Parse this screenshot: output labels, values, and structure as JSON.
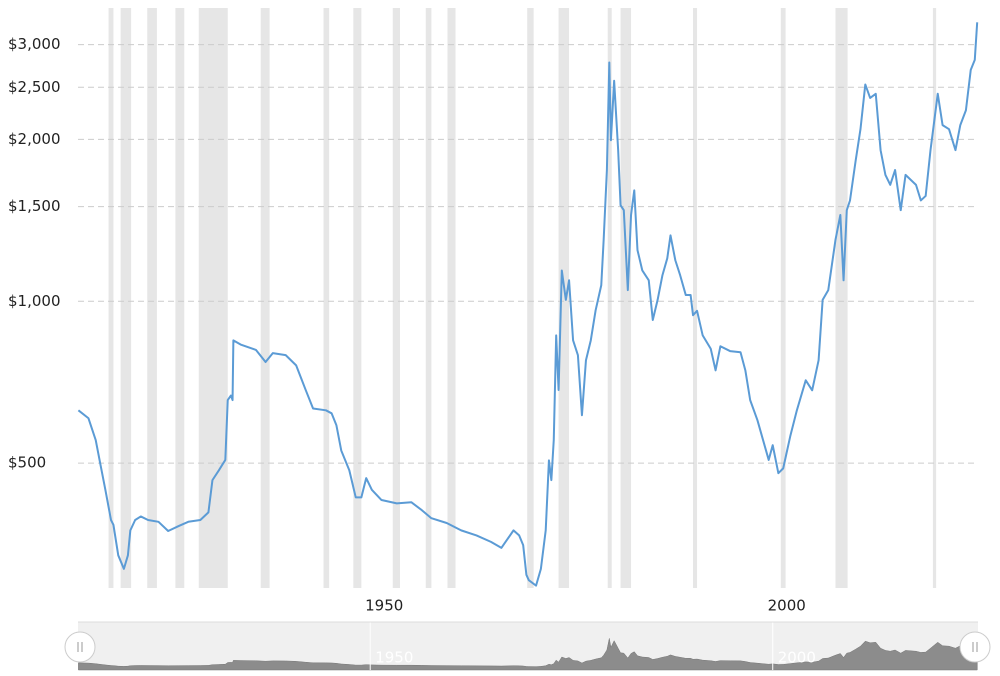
{
  "chart_data": {
    "type": "line",
    "yscale": "log",
    "grid": true,
    "xlim": [
      1913.7,
      2025.5
    ],
    "xticks": [
      1950,
      2000
    ],
    "ylim": [
      293,
      3510
    ],
    "yticks": [
      {
        "value": 500,
        "label": "$500"
      },
      {
        "value": 1000,
        "label": "$1,000"
      },
      {
        "value": 1500,
        "label": "$1,500"
      },
      {
        "value": 2000,
        "label": "$2,000"
      },
      {
        "value": 2500,
        "label": "$2,500"
      },
      {
        "value": 3000,
        "label": "$3,000"
      }
    ],
    "recession_color": "#e6e6e6",
    "recessions": [
      [
        1917.5,
        1918.1
      ],
      [
        1919.0,
        1920.3
      ],
      [
        1922.3,
        1923.5
      ],
      [
        1925.8,
        1926.9
      ],
      [
        1928.7,
        1932.3
      ],
      [
        1936.4,
        1937.5
      ],
      [
        1944.2,
        1944.9
      ],
      [
        1947.9,
        1948.9
      ],
      [
        1952.8,
        1953.7
      ],
      [
        1956.9,
        1957.6
      ],
      [
        1959.6,
        1960.6
      ],
      [
        1969.5,
        1970.3
      ],
      [
        1973.4,
        1974.7
      ],
      [
        1979.5,
        1980.0
      ],
      [
        1981.1,
        1982.4
      ],
      [
        1990.1,
        1990.6
      ],
      [
        2001.0,
        2001.6
      ],
      [
        2007.8,
        2009.3
      ],
      [
        2019.9,
        2020.3
      ]
    ],
    "x": [
      1913.75,
      1915.0,
      1915.9,
      1916.5,
      1917.1,
      1917.8,
      1918.1,
      1918.7,
      1919.4,
      1919.9,
      1920.2,
      1920.8,
      1921.5,
      1922.4,
      1923.7,
      1924.9,
      1926.2,
      1927.4,
      1928.9,
      1929.9,
      1930.4,
      1931.2,
      1931.6,
      1932.0,
      1932.3,
      1932.7,
      1932.9,
      1933.0,
      1933.9,
      1935.8,
      1937.0,
      1937.9,
      1939.5,
      1940.8,
      1942.0,
      1942.9,
      1944.5,
      1945.2,
      1945.8,
      1946.4,
      1947.4,
      1948.2,
      1948.9,
      1949.5,
      1950.2,
      1951.4,
      1953.3,
      1955.1,
      1956.4,
      1957.6,
      1959.5,
      1961.3,
      1963.2,
      1965.0,
      1966.3,
      1967.8,
      1968.5,
      1969.0,
      1969.4,
      1969.7,
      1970.6,
      1971.2,
      1971.8,
      1972.2,
      1972.5,
      1972.8,
      1973.1,
      1973.4,
      1973.8,
      1974.3,
      1974.7,
      1975.2,
      1975.8,
      1976.3,
      1976.8,
      1977.4,
      1978.0,
      1978.7,
      1979.0,
      1979.4,
      1979.7,
      1979.9,
      1980.3,
      1980.8,
      1981.1,
      1981.5,
      1982.0,
      1982.4,
      1982.8,
      1983.2,
      1983.8,
      1984.6,
      1985.1,
      1985.7,
      1986.3,
      1986.9,
      1987.3,
      1987.9,
      1988.5,
      1989.2,
      1989.8,
      1990.1,
      1990.6,
      1991.3,
      1992.3,
      1992.9,
      1993.5,
      1994.7,
      1996.0,
      1996.6,
      1997.2,
      1998.1,
      1998.8,
      1999.5,
      2000.0,
      2000.7,
      2001.3,
      2002.2,
      2003.0,
      2004.1,
      2004.9,
      2005.7,
      2006.2,
      2006.9,
      2007.8,
      2008.4,
      2008.8,
      2009.2,
      2009.6,
      2010.3,
      2010.9,
      2011.5,
      2012.1,
      2012.8,
      2013.4,
      2014.0,
      2014.6,
      2015.2,
      2015.9,
      2016.5,
      2017.8,
      2018.4,
      2019.0,
      2019.6,
      2020.5,
      2021.1,
      2021.9,
      2022.7,
      2023.3,
      2024.0,
      2024.6,
      2025.1,
      2025.4
    ],
    "series": [
      {
        "color": "#5b9bd5",
        "values": [
          627,
          606,
          552,
          496,
          446,
          392,
          384,
          337,
          318,
          337,
          375,
          392,
          398,
          392,
          389,
          374,
          382,
          389,
          392,
          405,
          465,
          485,
          496,
          507,
          655,
          668,
          655,
          846,
          831,
          812,
          771,
          801,
          794,
          760,
          683,
          632,
          627,
          619,
          588,
          528,
          485,
          432,
          432,
          469,
          446,
          427,
          421,
          423,
          409,
          395,
          387,
          375,
          367,
          357,
          348,
          375,
          367,
          352,
          310,
          303,
          296,
          318,
          375,
          506,
          465,
          552,
          864,
          684,
          1141,
          1006,
          1094,
          846,
          794,
          614,
          777,
          846,
          962,
          1071,
          1302,
          1754,
          2780,
          1993,
          2570,
          1910,
          1508,
          1477,
          1049,
          1447,
          1608,
          1245,
          1141,
          1094,
          923,
          1006,
          1118,
          1202,
          1326,
          1192,
          1118,
          1027,
          1027,
          942,
          960,
          864,
          816,
          744,
          825,
          808,
          804,
          744,
          655,
          601,
          552,
          507,
          540,
          479,
          489,
          563,
          627,
          713,
          683,
          777,
          1006,
          1049,
          1302,
          1447,
          1094,
          1477,
          1540,
          1825,
          2089,
          2530,
          2388,
          2431,
          1910,
          1718,
          1646,
          1754,
          1477,
          1718,
          1646,
          1540,
          1570,
          1910,
          2431,
          2126,
          2089,
          1910,
          2126,
          2266,
          2693,
          2811,
          3302
        ]
      }
    ]
  }
}
